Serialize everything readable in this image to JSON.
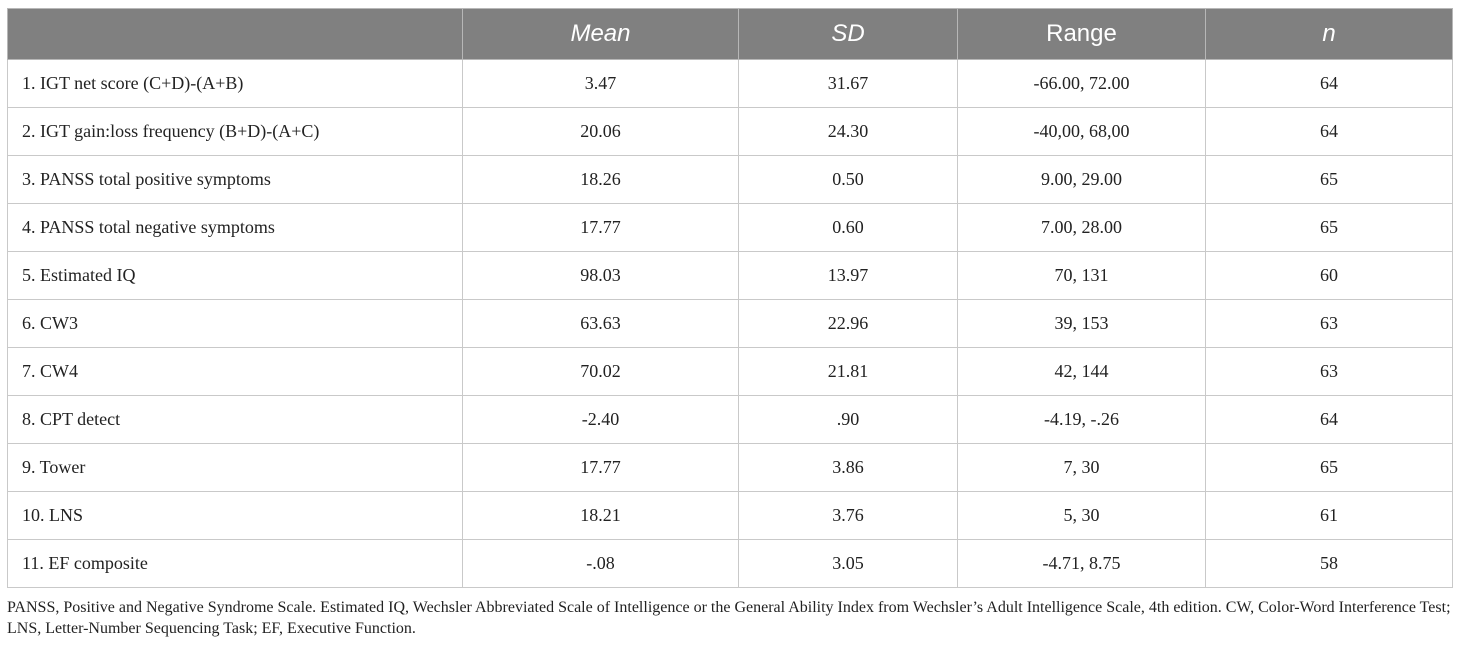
{
  "header": {
    "label": "",
    "mean": "Mean",
    "sd": "SD",
    "range": "Range",
    "n": "n"
  },
  "rows": [
    {
      "label": "1. IGT net score (C+D)-(A+B)",
      "mean": "3.47",
      "sd": "31.67",
      "range": "-66.00, 72.00",
      "n": "64"
    },
    {
      "label": "2. IGT gain:loss frequency (B+D)-(A+C)",
      "mean": "20.06",
      "sd": "24.30",
      "range": "-40,00, 68,00",
      "n": "64"
    },
    {
      "label": "3. PANSS total positive symptoms",
      "mean": "18.26",
      "sd": "0.50",
      "range": "9.00, 29.00",
      "n": "65"
    },
    {
      "label": "4. PANSS total negative symptoms",
      "mean": "17.77",
      "sd": "0.60",
      "range": "7.00, 28.00",
      "n": "65"
    },
    {
      "label": "5. Estimated IQ",
      "mean": "98.03",
      "sd": "13.97",
      "range": "70, 131",
      "n": "60"
    },
    {
      "label": "6. CW3",
      "mean": "63.63",
      "sd": "22.96",
      "range": "39, 153",
      "n": "63"
    },
    {
      "label": "7. CW4",
      "mean": "70.02",
      "sd": "21.81",
      "range": "42, 144",
      "n": "63"
    },
    {
      "label": "8. CPT detect",
      "mean": "-2.40",
      "sd": ".90",
      "range": "-4.19, -.26",
      "n": "64"
    },
    {
      "label": "9. Tower",
      "mean": "17.77",
      "sd": "3.86",
      "range": "7, 30",
      "n": "65"
    },
    {
      "label": "10. LNS",
      "mean": "18.21",
      "sd": "3.76",
      "range": "5, 30",
      "n": "61"
    },
    {
      "label": "11. EF composite",
      "mean": "-.08",
      "sd": "3.05",
      "range": "-4.71, 8.75",
      "n": "58"
    }
  ],
  "footnote": "PANSS, Positive and Negative Syndrome Scale. Estimated IQ, Wechsler Abbreviated Scale of Intelligence or the General Ability Index from Wechsler’s Adult Intelligence Scale, 4th edition. CW, Color-Word Interference Test; LNS, Letter-Number Sequencing Task; EF, Executive Function.",
  "colors": {
    "header_bg": "#808080",
    "header_text": "#ffffff",
    "grid": "#c9c9c9"
  }
}
